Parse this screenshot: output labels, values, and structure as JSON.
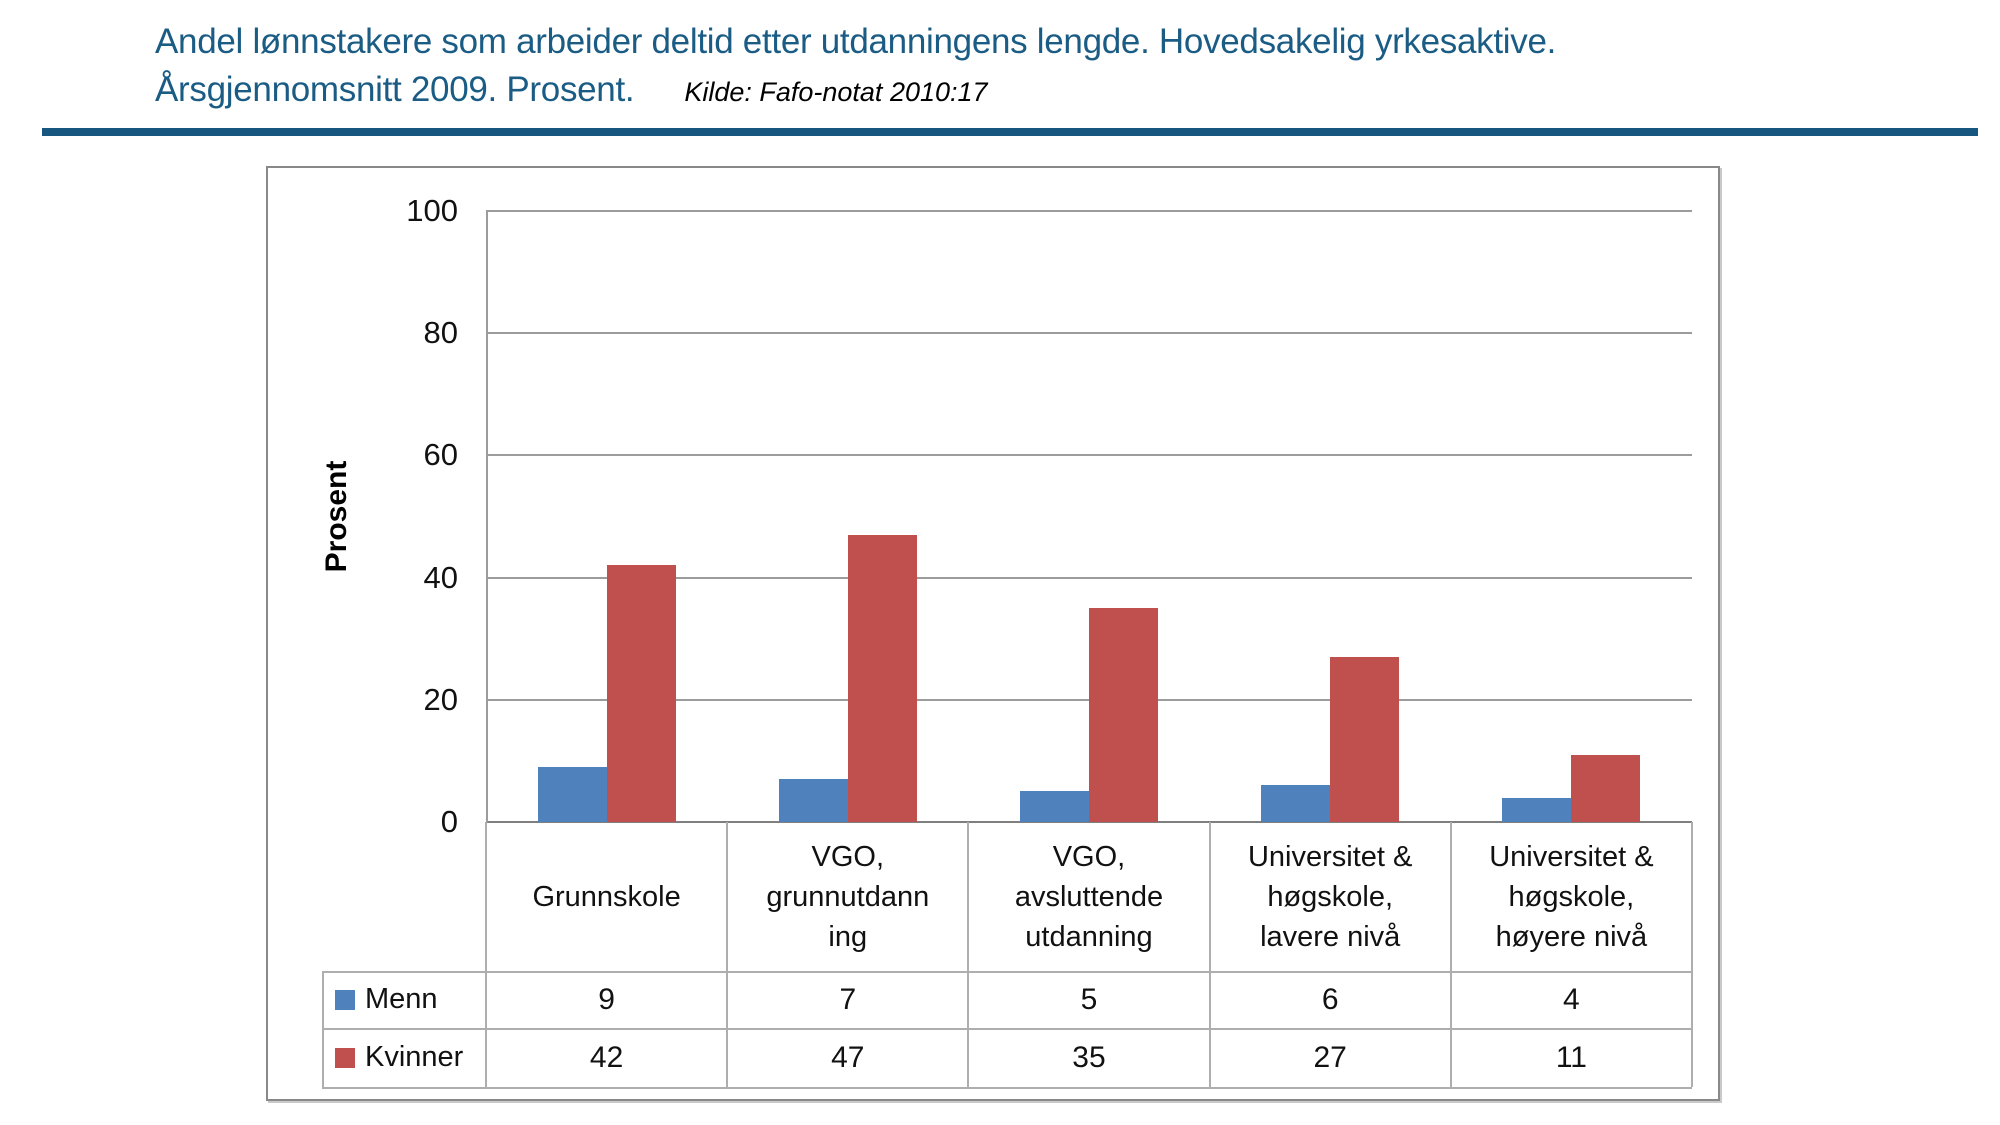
{
  "page": {
    "title_line1": "Andel lønnstakere som arbeider deltid etter utdanningens lengde. Hovedsakelig yrkesaktive.",
    "title_line2": "Årsgjennomsnitt 2009. Prosent.",
    "source": "Kilde: Fafo-notat 2010:17"
  },
  "chart_data": {
    "type": "bar",
    "title": "Andel lønnstakere som arbeider deltid etter utdanningens lengde. Hovedsakelig yrkesaktive. Årsgjennomsnitt 2009. Prosent.",
    "source": "Kilde: Fafo-notat 2010:17",
    "categories": [
      "Grunnskole",
      "VGO, grunnutdanning",
      "VGO, avsluttende utdanning",
      "Universitet & høgskole, lavere nivå",
      "Universitet & høgskole, høyere nivå"
    ],
    "category_display_lines": [
      [
        "Grunnskole"
      ],
      [
        "VGO,",
        "grunnutdann",
        "ing"
      ],
      [
        "VGO,",
        "avsluttende",
        "utdanning"
      ],
      [
        "Universitet &",
        "høgskole,",
        "lavere nivå"
      ],
      [
        "Universitet &",
        "høgskole,",
        "høyere nivå"
      ]
    ],
    "series": [
      {
        "name": "Menn",
        "color": "#4F81BD",
        "values": [
          9,
          7,
          5,
          6,
          4
        ]
      },
      {
        "name": "Kvinner",
        "color": "#C0504D",
        "values": [
          42,
          47,
          35,
          27,
          11
        ]
      }
    ],
    "xlabel": "",
    "ylabel": "Prosent",
    "ylim": [
      0,
      100
    ],
    "yticks": [
      0,
      20,
      40,
      60,
      80,
      100
    ],
    "grid": true,
    "legend_position": "table-rows-left"
  },
  "colors": {
    "title_accent": "#1B5C85",
    "divider": "#17567E",
    "series_menn": "#4F81BD",
    "series_kvinner": "#C0504D",
    "gridline": "#9C9C9C",
    "axis": "#7F7F7F",
    "table_border": "#AEAEAE",
    "frame_border": "#898989"
  }
}
